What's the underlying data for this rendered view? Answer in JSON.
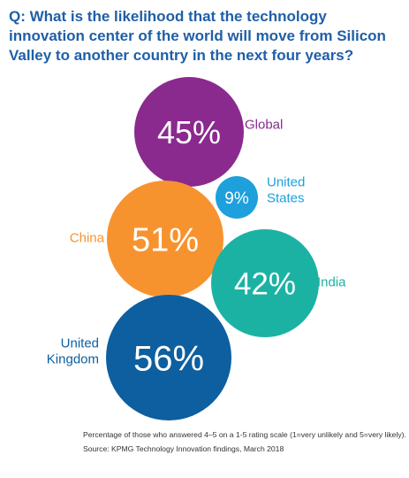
{
  "question": "Q: What is the likelihood that the technology innovation center of the world will move from Silicon Valley to another country in the next four years?",
  "footnote": "Percentage of those who answered 4–5 on a 1-5 rating scale (1=very unlikely and 5=very likely).",
  "source": "Source: KPMG Technology Innovation findings, March 2018",
  "chart_data": {
    "type": "bubble",
    "unit": "%",
    "categories": [
      "Global",
      "United States",
      "China",
      "India",
      "United Kingdom"
    ],
    "values": [
      45,
      9,
      51,
      42,
      56
    ],
    "value_labels": [
      "45%",
      "9%",
      "51%",
      "42%",
      "56%"
    ],
    "category_label_lines": [
      [
        "Global"
      ],
      [
        "United",
        "States"
      ],
      [
        "China"
      ],
      [
        "India"
      ],
      [
        "United",
        "Kingdom"
      ]
    ],
    "colors": [
      "#8a2a8f",
      "#1da0dc",
      "#f7932f",
      "#1bb2a4",
      "#0d5fa0"
    ],
    "label_colors": [
      "#8a2a8f",
      "#1da0dc",
      "#f7932f",
      "#1bb2a4",
      "#0d5fa0"
    ]
  }
}
